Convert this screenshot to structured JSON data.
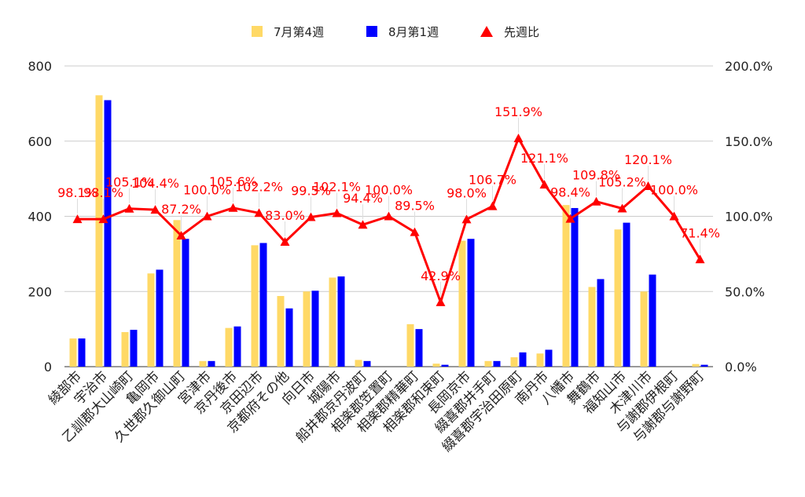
{
  "chart_data": {
    "type": "bar+line",
    "title": "",
    "categories": [
      "綾部市",
      "宇治市",
      "乙訓郡大山崎町",
      "亀岡市",
      "久世郡久御山町",
      "宮津市",
      "京丹後市",
      "京田辺市",
      "京都府その他",
      "向日市",
      "城陽市",
      "船井郡京丹波町",
      "相楽郡笠置町",
      "相楽郡精華町",
      "相楽郡和束町",
      "長岡京市",
      "綴喜郡井手町",
      "綴喜郡宇治田原町",
      "南丹市",
      "八幡市",
      "舞鶴市",
      "福知山市",
      "木津川市",
      "与謝郡伊根町",
      "与謝郡与謝野町"
    ],
    "series": [
      {
        "name": "7月第4週",
        "type": "bar",
        "axis": "left",
        "color": "#ffd966",
        "values": [
          75,
          722,
          92,
          248,
          390,
          15,
          103,
          323,
          188,
          200,
          237,
          18,
          0,
          113,
          8,
          335,
          15,
          25,
          35,
          430,
          212,
          365,
          200,
          0,
          7
        ]
      },
      {
        "name": "8月第1週",
        "type": "bar",
        "axis": "left",
        "color": "#0000ff",
        "values": [
          75,
          709,
          98,
          258,
          340,
          15,
          107,
          329,
          155,
          202,
          240,
          15,
          0,
          100,
          5,
          340,
          15,
          38,
          45,
          422,
          233,
          383,
          245,
          0,
          5
        ]
      },
      {
        "name": "先週比",
        "type": "line",
        "axis": "right",
        "color": "#ff0000",
        "values": [
          98.1,
          98.1,
          105.1,
          104.4,
          87.2,
          100.0,
          105.6,
          102.2,
          83.0,
          99.5,
          102.1,
          94.4,
          100.0,
          89.5,
          42.9,
          98.0,
          106.7,
          151.9,
          121.1,
          98.4,
          109.8,
          105.2,
          120.1,
          100.0,
          71.4
        ],
        "labels": [
          "98.1%",
          "98.1%",
          "105.1%",
          "104.4%",
          "87.2%",
          "100.0%",
          "105.6%",
          "102.2%",
          "83.0%",
          "99.5%",
          "102.1%",
          "94.4%",
          "100.0%",
          "89.5%",
          "42.9%",
          "98.0%",
          "106.7%",
          "151.9%",
          "121.1%",
          "98.4%",
          "109.8%",
          "105.2%",
          "120.1%",
          "100.0%",
          "71.4%"
        ]
      }
    ],
    "y_left": {
      "min": 0,
      "max": 800,
      "ticks": [
        0,
        200,
        400,
        600,
        800
      ],
      "tick_labels": [
        "0",
        "200",
        "400",
        "600",
        "800"
      ]
    },
    "y_right": {
      "min": 0,
      "max": 200,
      "ticks": [
        0,
        50,
        100,
        150,
        200
      ],
      "tick_labels": [
        "0.0%",
        "50.0%",
        "100.0%",
        "150.0%",
        "200.0%"
      ]
    },
    "grid": true,
    "legend": {
      "position": "top-center",
      "entries": [
        "7月第4週",
        "8月第1週",
        "先週比"
      ]
    }
  }
}
